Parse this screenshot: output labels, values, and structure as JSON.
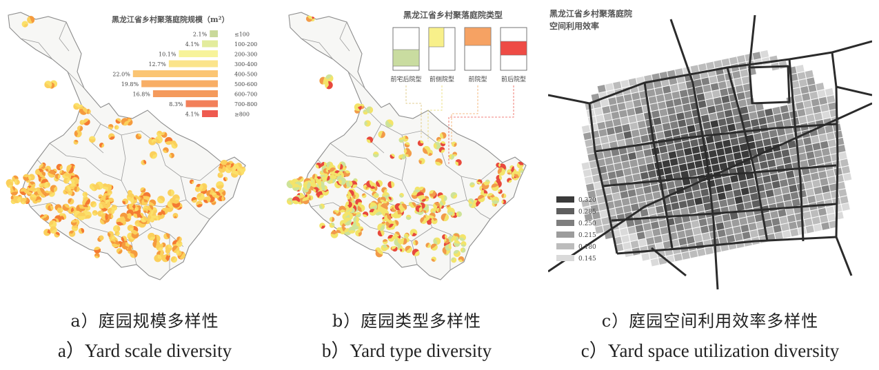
{
  "panel_a": {
    "title": "黑龙江省乡村聚落庭院规模（m²）",
    "legend": [
      {
        "pct": "2.1%",
        "range": "≤100",
        "value": 2.1,
        "color": "#c9d99a"
      },
      {
        "pct": "4.1%",
        "range": "100-200",
        "value": 4.1,
        "color": "#e3ec9c"
      },
      {
        "pct": "10.1%",
        "range": "200-300",
        "value": 10.1,
        "color": "#f7f39a"
      },
      {
        "pct": "12.7%",
        "range": "300-400",
        "value": 12.7,
        "color": "#fbe48b"
      },
      {
        "pct": "22.0%",
        "range": "400-500",
        "value": 22.0,
        "color": "#fbc573"
      },
      {
        "pct": "19.8%",
        "range": "500-600",
        "value": 19.8,
        "color": "#f8ae66"
      },
      {
        "pct": "16.8%",
        "range": "600-700",
        "value": 16.8,
        "color": "#f49a5c"
      },
      {
        "pct": "8.3%",
        "range": "700-800",
        "value": 8.3,
        "color": "#f2805a"
      },
      {
        "pct": "4.1%",
        "range": "≥800",
        "value": 4.1,
        "color": "#ee5a4f"
      }
    ]
  },
  "panel_b": {
    "title": "黑龙江省乡村聚落庭院类型",
    "types": [
      {
        "label": "前宅后院型",
        "color": "#c9dca0"
      },
      {
        "label": "前侧院型",
        "color": "#f8f08a"
      },
      {
        "label": "前院型",
        "color": "#f6a263"
      },
      {
        "label": "前后院型",
        "color": "#ee4b45"
      }
    ]
  },
  "panel_c": {
    "title_line1": "黑龙江省乡村聚落庭院",
    "title_line2": "空间利用效率",
    "legend": [
      {
        "label": "0.320",
        "color": "#3a3a3a"
      },
      {
        "label": "0.285",
        "color": "#5e5e5e"
      },
      {
        "label": "0.250",
        "color": "#7e7e7e"
      },
      {
        "label": "0.215",
        "color": "#9c9c9c"
      },
      {
        "label": "0.180",
        "color": "#bcbcbc"
      },
      {
        "label": "0.145",
        "color": "#dadada"
      }
    ]
  },
  "captions": {
    "a_zh": "a）庭园规模多样性",
    "a_en": "a）Yard scale diversity",
    "b_zh": "b）庭园类型多样性",
    "b_en": "b）Yard type diversity",
    "c_zh": "c）庭园空间利用效率多样性",
    "c_en": "c）Yard space utilization diversity"
  }
}
